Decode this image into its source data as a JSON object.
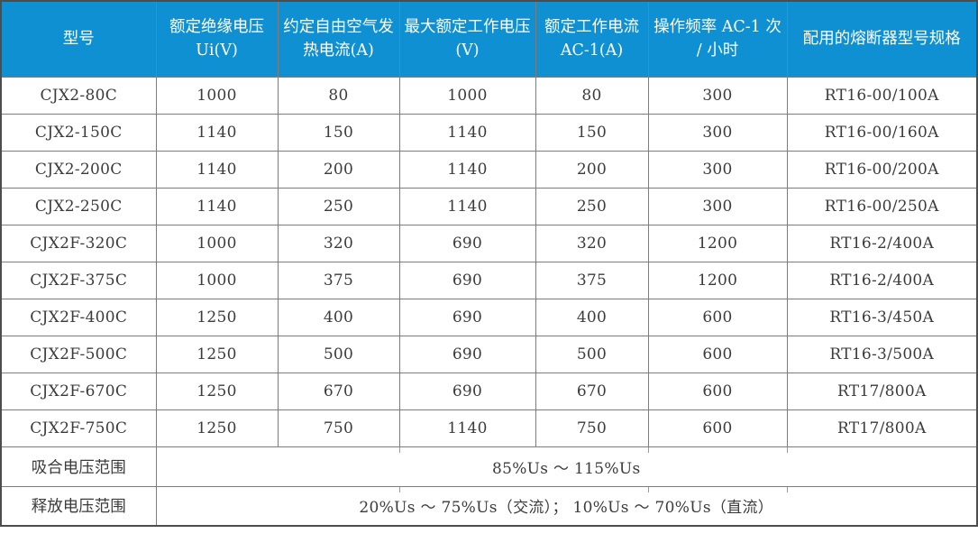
{
  "table": {
    "headers": [
      "型号",
      "额定绝缘电压 Ui(V)",
      "约定自由空气发热电流(A)",
      "最大额定工作电压(V)",
      "额定工作电流 AC-1(A)",
      "操作频率 AC-1 次 / 小时",
      "配用的熔断器型号规格"
    ],
    "rows": [
      [
        "CJX2-80C",
        "1000",
        "80",
        "1000",
        "80",
        "300",
        "RT16-00/100A"
      ],
      [
        "CJX2-150C",
        "1140",
        "150",
        "1140",
        "150",
        "300",
        "RT16-00/160A"
      ],
      [
        "CJX2-200C",
        "1140",
        "200",
        "1140",
        "200",
        "300",
        "RT16-00/200A"
      ],
      [
        "CJX2-250C",
        "1140",
        "250",
        "1140",
        "250",
        "300",
        "RT16-00/250A"
      ],
      [
        "CJX2F-320C",
        "1000",
        "320",
        "690",
        "320",
        "1200",
        "RT16-2/400A"
      ],
      [
        "CJX2F-375C",
        "1000",
        "375",
        "690",
        "375",
        "1200",
        "RT16-2/400A"
      ],
      [
        "CJX2F-400C",
        "1250",
        "400",
        "690",
        "400",
        "600",
        "RT16-3/450A"
      ],
      [
        "CJX2F-500C",
        "1250",
        "500",
        "690",
        "500",
        "600",
        "RT16-3/500A"
      ],
      [
        "CJX2F-670C",
        "1250",
        "670",
        "690",
        "670",
        "600",
        "RT17/800A"
      ],
      [
        "CJX2F-750C",
        "1250",
        "750",
        "1140",
        "750",
        "600",
        "RT17/800A"
      ]
    ],
    "footer_rows": [
      {
        "label": "吸合电压范围",
        "value": "85%Us ～ 115%Us"
      },
      {
        "label": "释放电压范围",
        "value": "20%Us ～ 75%Us（交流）； 10%Us ～ 70%Us（直流）"
      }
    ],
    "colors": {
      "header_bg": "#0F90D2",
      "header_text": "#FFFFFF",
      "body_text": "#3B3B3B",
      "grid_line": "#7D7D7D",
      "outer_border": "#4D4D4D"
    }
  }
}
